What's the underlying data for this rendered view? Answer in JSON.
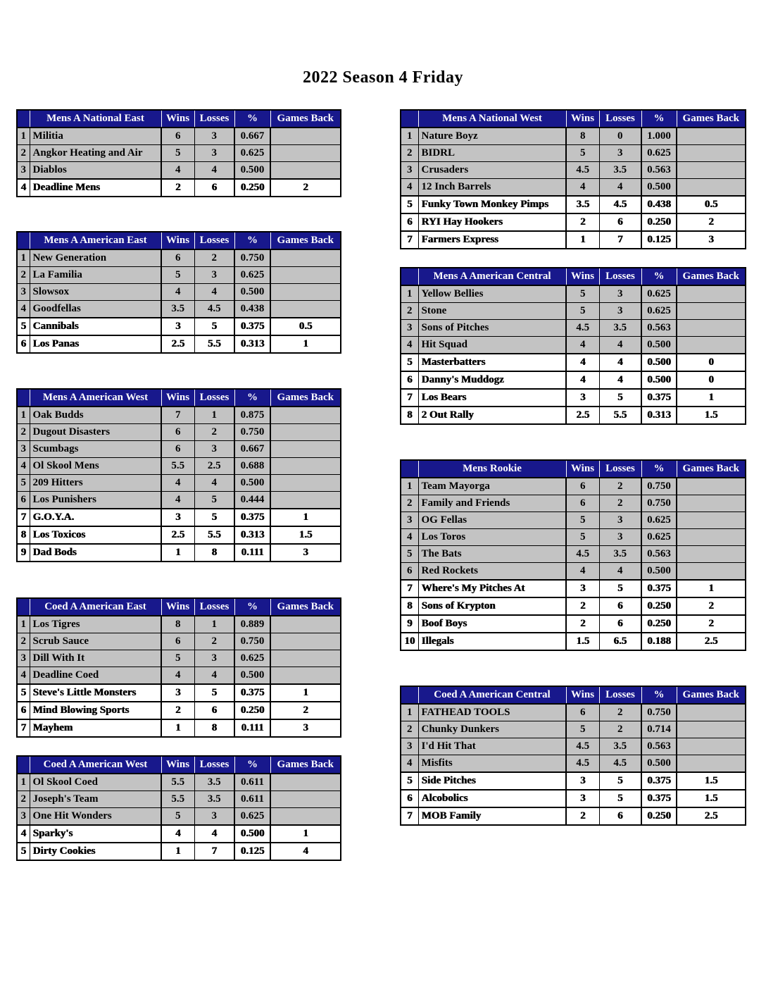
{
  "page": {
    "title": "2022 Season 4 Friday"
  },
  "colors": {
    "header_bg": "#18188c",
    "header_text": "#ffffff",
    "row_gray": "#c3c3c3",
    "border": "#000000"
  },
  "column_headers": {
    "wins": "Wins",
    "losses": "Losses",
    "pct": "%",
    "games_back": "Games Back"
  },
  "tables": [
    {
      "name": "Mens A National East",
      "column": "left",
      "rows": [
        {
          "rank": "1",
          "team": "Militia",
          "wins": "6",
          "losses": "3",
          "pct": "0.667",
          "games_back": "",
          "below_line": false
        },
        {
          "rank": "2",
          "team": "Angkor Heating and Air",
          "wins": "5",
          "losses": "3",
          "pct": "0.625",
          "games_back": "",
          "below_line": false
        },
        {
          "rank": "3",
          "team": "Diablos",
          "wins": "4",
          "losses": "4",
          "pct": "0.500",
          "games_back": "",
          "below_line": false
        },
        {
          "rank": "4",
          "team": "Deadline Mens",
          "wins": "2",
          "losses": "6",
          "pct": "0.250",
          "games_back": "2",
          "below_line": true
        }
      ]
    },
    {
      "name": "Mens A American East",
      "column": "left",
      "rows": [
        {
          "rank": "1",
          "team": "New Generation",
          "wins": "6",
          "losses": "2",
          "pct": "0.750",
          "games_back": "",
          "below_line": false
        },
        {
          "rank": "2",
          "team": "La Familia",
          "wins": "5",
          "losses": "3",
          "pct": "0.625",
          "games_back": "",
          "below_line": false
        },
        {
          "rank": "3",
          "team": "Slowsox",
          "wins": "4",
          "losses": "4",
          "pct": "0.500",
          "games_back": "",
          "below_line": false
        },
        {
          "rank": "4",
          "team": "Goodfellas",
          "wins": "3.5",
          "losses": "4.5",
          "pct": "0.438",
          "games_back": "",
          "below_line": false
        },
        {
          "rank": "5",
          "team": "Cannibals",
          "wins": "3",
          "losses": "5",
          "pct": "0.375",
          "games_back": "0.5",
          "below_line": true
        },
        {
          "rank": "6",
          "team": "Los Panas",
          "wins": "2.5",
          "losses": "5.5",
          "pct": "0.313",
          "games_back": "1",
          "below_line": true
        }
      ]
    },
    {
      "name": "Mens A American West",
      "column": "left",
      "rows": [
        {
          "rank": "1",
          "team": "Oak Budds",
          "wins": "7",
          "losses": "1",
          "pct": "0.875",
          "games_back": "",
          "below_line": false
        },
        {
          "rank": "2",
          "team": "Dugout Disasters",
          "wins": "6",
          "losses": "2",
          "pct": "0.750",
          "games_back": "",
          "below_line": false
        },
        {
          "rank": "3",
          "team": "Scumbags",
          "wins": "6",
          "losses": "3",
          "pct": "0.667",
          "games_back": "",
          "below_line": false
        },
        {
          "rank": "4",
          "team": "Ol Skool Mens",
          "wins": "5.5",
          "losses": "2.5",
          "pct": "0.688",
          "games_back": "",
          "below_line": false
        },
        {
          "rank": "5",
          "team": "209 Hitters",
          "wins": "4",
          "losses": "4",
          "pct": "0.500",
          "games_back": "",
          "below_line": false
        },
        {
          "rank": "6",
          "team": "Los Punishers",
          "wins": "4",
          "losses": "5",
          "pct": "0.444",
          "games_back": "",
          "below_line": false
        },
        {
          "rank": "7",
          "team": "G.O.Y.A.",
          "wins": "3",
          "losses": "5",
          "pct": "0.375",
          "games_back": "1",
          "below_line": true
        },
        {
          "rank": "8",
          "team": "Los Toxicos",
          "wins": "2.5",
          "losses": "5.5",
          "pct": "0.313",
          "games_back": "1.5",
          "below_line": true
        },
        {
          "rank": "9",
          "team": "Dad Bods",
          "wins": "1",
          "losses": "8",
          "pct": "0.111",
          "games_back": "3",
          "below_line": true
        }
      ]
    },
    {
      "name": "Coed A American East",
      "column": "left",
      "rows": [
        {
          "rank": "1",
          "team": "Los Tigres",
          "wins": "8",
          "losses": "1",
          "pct": "0.889",
          "games_back": "",
          "below_line": false
        },
        {
          "rank": "2",
          "team": "Scrub Sauce",
          "wins": "6",
          "losses": "2",
          "pct": "0.750",
          "games_back": "",
          "below_line": false
        },
        {
          "rank": "3",
          "team": "Dill With It",
          "wins": "5",
          "losses": "3",
          "pct": "0.625",
          "games_back": "",
          "below_line": false
        },
        {
          "rank": "4",
          "team": "Deadline Coed",
          "wins": "4",
          "losses": "4",
          "pct": "0.500",
          "games_back": "",
          "below_line": false
        },
        {
          "rank": "5",
          "team": "Steve's Little Monsters",
          "wins": "3",
          "losses": "5",
          "pct": "0.375",
          "games_back": "1",
          "below_line": true
        },
        {
          "rank": "6",
          "team": "Mind Blowing Sports",
          "wins": "2",
          "losses": "6",
          "pct": "0.250",
          "games_back": "2",
          "below_line": true
        },
        {
          "rank": "7",
          "team": "Mayhem",
          "wins": "1",
          "losses": "8",
          "pct": "0.111",
          "games_back": "3",
          "below_line": true
        }
      ]
    },
    {
      "name": "Coed A American West",
      "column": "left",
      "rows": [
        {
          "rank": "1",
          "team": "Ol Skool Coed",
          "wins": "5.5",
          "losses": "3.5",
          "pct": "0.611",
          "games_back": "",
          "below_line": false
        },
        {
          "rank": "2",
          "team": "Joseph's Team",
          "wins": "5.5",
          "losses": "3.5",
          "pct": "0.611",
          "games_back": "",
          "below_line": false
        },
        {
          "rank": "3",
          "team": "One Hit Wonders",
          "wins": "5",
          "losses": "3",
          "pct": "0.625",
          "games_back": "",
          "below_line": false
        },
        {
          "rank": "4",
          "team": "Sparky's",
          "wins": "4",
          "losses": "4",
          "pct": "0.500",
          "games_back": "1",
          "below_line": true
        },
        {
          "rank": "5",
          "team": "Dirty Cookies",
          "wins": "1",
          "losses": "7",
          "pct": "0.125",
          "games_back": "4",
          "below_line": true
        }
      ]
    },
    {
      "name": "Mens A National West",
      "column": "right",
      "rows": [
        {
          "rank": "1",
          "team": "Nature Boyz",
          "wins": "8",
          "losses": "0",
          "pct": "1.000",
          "games_back": "",
          "below_line": false
        },
        {
          "rank": "2",
          "team": "BIDRL",
          "wins": "5",
          "losses": "3",
          "pct": "0.625",
          "games_back": "",
          "below_line": false
        },
        {
          "rank": "3",
          "team": "Crusaders",
          "wins": "4.5",
          "losses": "3.5",
          "pct": "0.563",
          "games_back": "",
          "below_line": false
        },
        {
          "rank": "4",
          "team": "12 Inch Barrels",
          "wins": "4",
          "losses": "4",
          "pct": "0.500",
          "games_back": "",
          "below_line": false
        },
        {
          "rank": "5",
          "team": "Funky Town Monkey Pimps",
          "wins": "3.5",
          "losses": "4.5",
          "pct": "0.438",
          "games_back": "0.5",
          "below_line": true
        },
        {
          "rank": "6",
          "team": "RYI Hay Hookers",
          "wins": "2",
          "losses": "6",
          "pct": "0.250",
          "games_back": "2",
          "below_line": true
        },
        {
          "rank": "7",
          "team": "Farmers Express",
          "wins": "1",
          "losses": "7",
          "pct": "0.125",
          "games_back": "3",
          "below_line": true
        }
      ]
    },
    {
      "name": "Mens A American Central",
      "column": "right",
      "rows": [
        {
          "rank": "1",
          "team": "Yellow Bellies",
          "wins": "5",
          "losses": "3",
          "pct": "0.625",
          "games_back": "",
          "below_line": false
        },
        {
          "rank": "2",
          "team": "Stone",
          "wins": "5",
          "losses": "3",
          "pct": "0.625",
          "games_back": "",
          "below_line": false
        },
        {
          "rank": "3",
          "team": "Sons of Pitches",
          "wins": "4.5",
          "losses": "3.5",
          "pct": "0.563",
          "games_back": "",
          "below_line": false
        },
        {
          "rank": "4",
          "team": "Hit Squad",
          "wins": "4",
          "losses": "4",
          "pct": "0.500",
          "games_back": "",
          "below_line": false
        },
        {
          "rank": "5",
          "team": "Masterbatters",
          "wins": "4",
          "losses": "4",
          "pct": "0.500",
          "games_back": "0",
          "below_line": true
        },
        {
          "rank": "6",
          "team": "Danny's Muddogz",
          "wins": "4",
          "losses": "4",
          "pct": "0.500",
          "games_back": "0",
          "below_line": true
        },
        {
          "rank": "7",
          "team": "Los Bears",
          "wins": "3",
          "losses": "5",
          "pct": "0.375",
          "games_back": "1",
          "below_line": true
        },
        {
          "rank": "8",
          "team": "2 Out Rally",
          "wins": "2.5",
          "losses": "5.5",
          "pct": "0.313",
          "games_back": "1.5",
          "below_line": true
        }
      ]
    },
    {
      "name": "Mens Rookie",
      "column": "right",
      "rows": [
        {
          "rank": "1",
          "team": "Team Mayorga",
          "wins": "6",
          "losses": "2",
          "pct": "0.750",
          "games_back": "",
          "below_line": false
        },
        {
          "rank": "2",
          "team": "Family and Friends",
          "wins": "6",
          "losses": "2",
          "pct": "0.750",
          "games_back": "",
          "below_line": false
        },
        {
          "rank": "3",
          "team": "OG Fellas",
          "wins": "5",
          "losses": "3",
          "pct": "0.625",
          "games_back": "",
          "below_line": false
        },
        {
          "rank": "4",
          "team": "Los Toros",
          "wins": "5",
          "losses": "3",
          "pct": "0.625",
          "games_back": "",
          "below_line": false
        },
        {
          "rank": "5",
          "team": "The Bats",
          "wins": "4.5",
          "losses": "3.5",
          "pct": "0.563",
          "games_back": "",
          "below_line": false
        },
        {
          "rank": "6",
          "team": "Red Rockets",
          "wins": "4",
          "losses": "4",
          "pct": "0.500",
          "games_back": "",
          "below_line": false
        },
        {
          "rank": "7",
          "team": "Where's My Pitches At",
          "wins": "3",
          "losses": "5",
          "pct": "0.375",
          "games_back": "1",
          "below_line": true
        },
        {
          "rank": "8",
          "team": "Sons of Krypton",
          "wins": "2",
          "losses": "6",
          "pct": "0.250",
          "games_back": "2",
          "below_line": true
        },
        {
          "rank": "9",
          "team": "Boof Boys",
          "wins": "2",
          "losses": "6",
          "pct": "0.250",
          "games_back": "2",
          "below_line": true
        },
        {
          "rank": "10",
          "team": "Illegals",
          "wins": "1.5",
          "losses": "6.5",
          "pct": "0.188",
          "games_back": "2.5",
          "below_line": true
        }
      ]
    },
    {
      "name": "Coed A American Central",
      "column": "right",
      "rows": [
        {
          "rank": "1",
          "team": "FATHEAD TOOLS",
          "wins": "6",
          "losses": "2",
          "pct": "0.750",
          "games_back": "",
          "below_line": false
        },
        {
          "rank": "2",
          "team": "Chunky Dunkers",
          "wins": "5",
          "losses": "2",
          "pct": "0.714",
          "games_back": "",
          "below_line": false
        },
        {
          "rank": "3",
          "team": "I'd Hit That",
          "wins": "4.5",
          "losses": "3.5",
          "pct": "0.563",
          "games_back": "",
          "below_line": false
        },
        {
          "rank": "4",
          "team": "Misfits",
          "wins": "4.5",
          "losses": "4.5",
          "pct": "0.500",
          "games_back": "",
          "below_line": false
        },
        {
          "rank": "5",
          "team": "Side Pitches",
          "wins": "3",
          "losses": "5",
          "pct": "0.375",
          "games_back": "1.5",
          "below_line": true
        },
        {
          "rank": "6",
          "team": "Alcobolics",
          "wins": "3",
          "losses": "5",
          "pct": "0.375",
          "games_back": "1.5",
          "below_line": true
        },
        {
          "rank": "7",
          "team": "MOB Family",
          "wins": "2",
          "losses": "6",
          "pct": "0.250",
          "games_back": "2.5",
          "below_line": true
        }
      ]
    }
  ]
}
